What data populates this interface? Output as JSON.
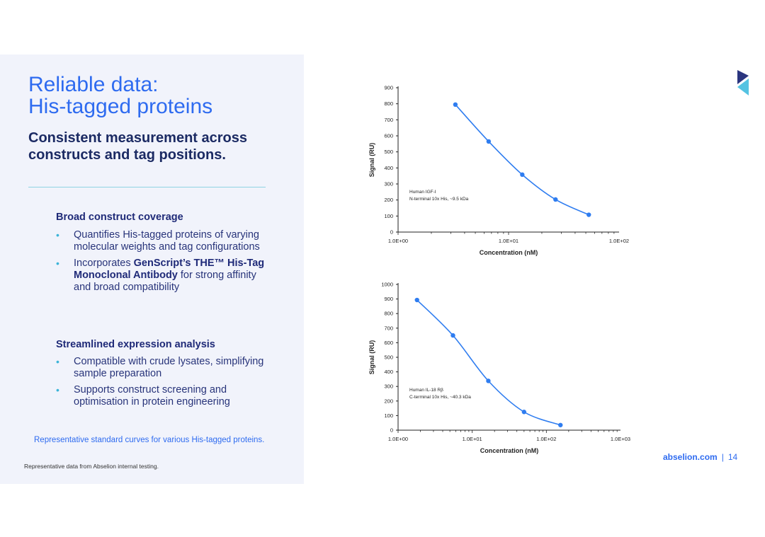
{
  "slide": {
    "title_line1": "Reliable data:",
    "title_line2": "His-tagged proteins",
    "subtitle_line1": "Consistent measurement across",
    "subtitle_line2": "constructs and tag positions.",
    "sections": [
      {
        "heading": "Broad construct coverage",
        "bullets": [
          "Quantifies His-tagged proteins of varying molecular weights and tag configurations",
          "Incorporates GenScript’s THE™ His-Tag Monoclonal Antibody for strong affinity and broad compatibility"
        ],
        "bold_phrase": "GenScript’s THE™ His-Tag Monoclonal Antibody"
      },
      {
        "heading": "Streamlined expression analysis",
        "bullets": [
          "Compatible with crude lysates, simplifying sample preparation",
          "Supports construct screening and optimisation in protein engineering"
        ]
      }
    ],
    "caption": "Representative standard curves for various His-tagged proteins.",
    "footnote": "Representative data from Abselion internal testing.",
    "footer_site": "abselion.com",
    "footer_sep": "|",
    "page_number": "14",
    "colors": {
      "accent": "#2e6bf0",
      "navy": "#1f2a78",
      "bullet": "#3cb4d8",
      "line": "#2f7df0",
      "logo_top": "#1f2a78",
      "logo_bottom": "#4cc0e0"
    }
  },
  "chart_data": [
    {
      "type": "line",
      "xscale": "log",
      "xlabel": "Concentration (nM)",
      "ylabel": "Signal (RU)",
      "xlim": [
        1,
        100
      ],
      "ylim": [
        0,
        900
      ],
      "yticks": [
        0,
        100,
        200,
        300,
        400,
        500,
        600,
        700,
        800,
        900
      ],
      "xticks": [
        1,
        10,
        100
      ],
      "xtick_labels": [
        "1.0E+00",
        "1.0E+01",
        "1.0E+02"
      ],
      "annotation": [
        "Human IGF-I",
        "N-terminal 10x His, ~9.5 kDa"
      ],
      "series": [
        {
          "name": "Human IGF-I",
          "x": [
            3.3,
            6.6,
            13.3,
            26.6,
            53.2
          ],
          "y": [
            795,
            565,
            358,
            203,
            108
          ]
        }
      ]
    },
    {
      "type": "line",
      "xscale": "log",
      "xlabel": "Concentration (nM)",
      "ylabel": "Signal (RU)",
      "xlim": [
        1,
        1000
      ],
      "ylim": [
        0,
        1000
      ],
      "yticks": [
        0,
        100,
        200,
        300,
        400,
        500,
        600,
        700,
        800,
        900,
        1000
      ],
      "xticks": [
        1,
        10,
        100,
        1000
      ],
      "xtick_labels": [
        "1.0E+00",
        "1.0E+01",
        "1.0E+02",
        "1.0E+03"
      ],
      "annotation": [
        "Human IL-18 Rβ",
        "C-terminal 10x His, ~40.3 kDa"
      ],
      "series": [
        {
          "name": "Human IL-18 Rβ",
          "x": [
            1.8,
            5.5,
            16.5,
            50,
            155
          ],
          "y": [
            893,
            650,
            338,
            125,
            35
          ]
        }
      ]
    }
  ]
}
